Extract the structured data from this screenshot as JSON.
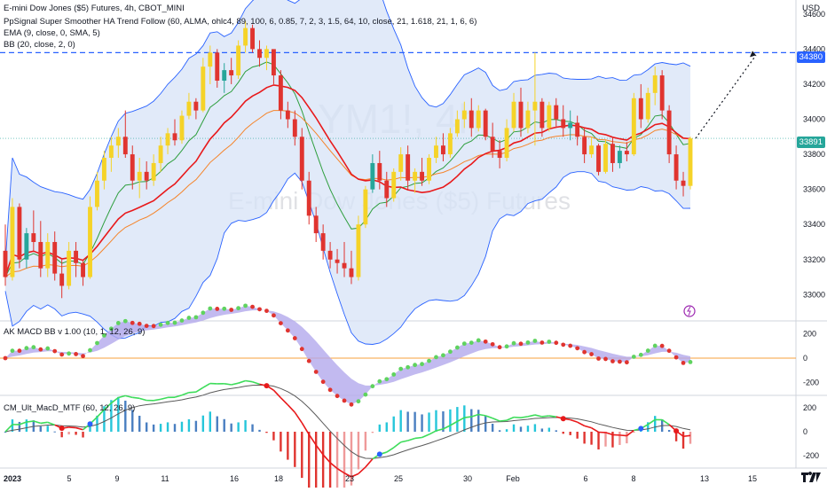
{
  "header": {
    "symbol_line": "E-mini Dow Jones ($5) Futures, 4h, CBOT_MINI",
    "indicator_1": "PpSignal Super Smoother HA Trend Follow (60, ALMA, ohlc4, 89, 100, 6, 0.85, 7, 2, 3, 1.5, 64, 10, close, 21, 1.618, 21, 1, 6, 6)",
    "indicator_2": "EMA (9, close, 0, SMA, 5)",
    "indicator_3": "BB (20, close, 2, 0)"
  },
  "watermark": {
    "ticker": "YM1!, 4h",
    "name": "E-mini Dow Jones ($5) Futures"
  },
  "price_axis": {
    "currency": "USD",
    "ticks": [
      "34600",
      "34400",
      "34200",
      "34000",
      "33800",
      "33600",
      "33400",
      "33200",
      "33000"
    ],
    "tick_values": [
      34600,
      34400,
      34200,
      34000,
      33800,
      33600,
      33400,
      33200,
      33000
    ],
    "last_price": "33891",
    "level_price": "34380"
  },
  "macd_pane": {
    "label": "AK MACD BB v 1.00 (10, 1, 12, 26, 9)",
    "ticks": [
      "200",
      "0",
      "-200"
    ],
    "tick_values": [
      200,
      0,
      -200
    ]
  },
  "cm_pane": {
    "label": "CM_Ult_MacD_MTF (60, 12, 26, 9)",
    "ticks": [
      "200",
      "0",
      "-200"
    ],
    "tick_values": [
      200,
      0,
      -200
    ]
  },
  "time_axis": {
    "labels": [
      "2023",
      "5",
      "9",
      "11",
      "16",
      "18",
      "23",
      "25",
      "30",
      "Feb",
      "6",
      "8",
      "13",
      "15"
    ]
  },
  "colors": {
    "bull": "#f5d328",
    "bear": "#e0342f",
    "bull_alt": "#26a69a",
    "bb_fill": "#d7e3f7",
    "bb_line": "#2962ff",
    "ema_green": "#2e9e3e",
    "ema_orange": "#f5842a",
    "trend_red": "#e8191b",
    "level_line": "#2962ff",
    "last_price_tag": "#26a69a",
    "level_tag": "#2962ff",
    "macd_fill": "#b3a9ec",
    "zero_line": "#f7a13b"
  },
  "chart_data": {
    "type": "candlestick",
    "price_ylim": [
      32850,
      34680
    ],
    "candles_ohlc": [
      [
        33250,
        33400,
        33050,
        33100
      ],
      [
        33100,
        33550,
        33080,
        33500
      ],
      [
        33500,
        33520,
        33150,
        33200
      ],
      [
        33200,
        33380,
        33150,
        33350
      ],
      [
        33350,
        33480,
        33250,
        33300
      ],
      [
        33300,
        33420,
        33100,
        33150
      ],
      [
        33150,
        33350,
        33100,
        33300
      ],
      [
        33300,
        33360,
        33080,
        33120
      ],
      [
        33120,
        33200,
        32980,
        33050
      ],
      [
        33050,
        33300,
        33030,
        33250
      ],
      [
        33250,
        33300,
        33100,
        33180
      ],
      [
        33180,
        33200,
        33050,
        33100
      ],
      [
        33100,
        33560,
        33090,
        33500
      ],
      [
        33500,
        33700,
        33480,
        33650
      ],
      [
        33650,
        33820,
        33600,
        33780
      ],
      [
        33780,
        33900,
        33700,
        33850
      ],
      [
        33850,
        33950,
        33780,
        33900
      ],
      [
        33900,
        34050,
        33780,
        33800
      ],
      [
        33800,
        33850,
        33600,
        33650
      ],
      [
        33650,
        33780,
        33550,
        33700
      ],
      [
        33700,
        33760,
        33600,
        33650
      ],
      [
        33650,
        33800,
        33620,
        33750
      ],
      [
        33750,
        33900,
        33700,
        33850
      ],
      [
        33850,
        33950,
        33800,
        33920
      ],
      [
        33920,
        34000,
        33850,
        33880
      ],
      [
        33880,
        34050,
        33860,
        34020
      ],
      [
        34020,
        34150,
        34000,
        34100
      ],
      [
        34100,
        34120,
        34000,
        34050
      ],
      [
        34050,
        34350,
        34040,
        34300
      ],
      [
        34300,
        34420,
        34200,
        34380
      ],
      [
        34380,
        34400,
        34180,
        34220
      ],
      [
        34220,
        34320,
        34150,
        34280
      ],
      [
        34280,
        34350,
        34200,
        34250
      ],
      [
        34250,
        34450,
        34230,
        34420
      ],
      [
        34420,
        34560,
        34380,
        34520
      ],
      [
        34520,
        34540,
        34380,
        34400
      ],
      [
        34400,
        34450,
        34300,
        34350
      ],
      [
        34350,
        34420,
        34280,
        34400
      ],
      [
        34400,
        34380,
        34200,
        34250
      ],
      [
        34250,
        34280,
        34000,
        34050
      ],
      [
        34050,
        34100,
        33950,
        34000
      ],
      [
        34000,
        34050,
        33850,
        33900
      ],
      [
        33900,
        33950,
        33600,
        33650
      ],
      [
        33650,
        33700,
        33400,
        33450
      ],
      [
        33450,
        33500,
        33300,
        33350
      ],
      [
        33350,
        33400,
        33200,
        33250
      ],
      [
        33250,
        33300,
        33150,
        33200
      ],
      [
        33200,
        33260,
        33120,
        33180
      ],
      [
        33180,
        33300,
        33100,
        33150
      ],
      [
        33150,
        33250,
        33060,
        33100
      ],
      [
        33100,
        33450,
        33080,
        33400
      ],
      [
        33400,
        33620,
        33380,
        33600
      ],
      [
        33600,
        33800,
        33580,
        33750
      ],
      [
        33750,
        33820,
        33600,
        33650
      ],
      [
        33650,
        33700,
        33500,
        33550
      ],
      [
        33550,
        33720,
        33530,
        33700
      ],
      [
        33700,
        33840,
        33650,
        33800
      ],
      [
        33800,
        33850,
        33600,
        33650
      ],
      [
        33650,
        33720,
        33580,
        33700
      ],
      [
        33700,
        33780,
        33620,
        33650
      ],
      [
        33650,
        33800,
        33630,
        33780
      ],
      [
        33780,
        33900,
        33750,
        33850
      ],
      [
        33850,
        33920,
        33760,
        33800
      ],
      [
        33800,
        33950,
        33780,
        33920
      ],
      [
        33920,
        34050,
        33900,
        34000
      ],
      [
        34000,
        34100,
        33950,
        34050
      ],
      [
        34050,
        34120,
        33900,
        33950
      ],
      [
        33950,
        34080,
        33930,
        34050
      ],
      [
        34050,
        34060,
        33880,
        33900
      ],
      [
        33900,
        33980,
        33780,
        33820
      ],
      [
        33820,
        33880,
        33720,
        33780
      ],
      [
        33780,
        34000,
        33760,
        33950
      ],
      [
        33950,
        34150,
        33930,
        34100
      ],
      [
        34100,
        34180,
        33900,
        33950
      ],
      [
        33950,
        34100,
        33920,
        34050
      ],
      [
        34050,
        34380,
        33850,
        34100
      ],
      [
        34100,
        34120,
        33900,
        33950
      ],
      [
        33950,
        34100,
        33930,
        34080
      ],
      [
        34080,
        34120,
        33950,
        34000
      ],
      [
        34000,
        34080,
        33900,
        33950
      ],
      [
        33950,
        34050,
        33880,
        33980
      ],
      [
        33980,
        34020,
        33850,
        33900
      ],
      [
        33900,
        33950,
        33750,
        33800
      ],
      [
        33800,
        33900,
        33780,
        33850
      ],
      [
        33850,
        33860,
        33680,
        33700
      ],
      [
        33700,
        33880,
        33690,
        33860
      ],
      [
        33860,
        33900,
        33700,
        33750
      ],
      [
        33750,
        33850,
        33720,
        33820
      ],
      [
        33820,
        33870,
        33760,
        33800
      ],
      [
        33800,
        34150,
        33790,
        34120
      ],
      [
        34120,
        34200,
        33950,
        34000
      ],
      [
        34000,
        34180,
        33980,
        34150
      ],
      [
        34150,
        34300,
        34080,
        34250
      ],
      [
        34250,
        34280,
        34000,
        34050
      ],
      [
        34050,
        34080,
        33750,
        33800
      ],
      [
        33800,
        33850,
        33600,
        33650
      ],
      [
        33650,
        33700,
        33560,
        33620
      ],
      [
        33620,
        33900,
        33600,
        33891
      ]
    ],
    "projection_target": 34380
  }
}
